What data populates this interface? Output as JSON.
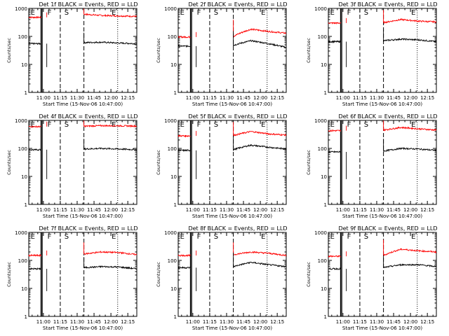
{
  "chart_data": [
    {
      "type": "line",
      "title": "Det 1f BLACK = Events, RED = LLD",
      "xlabel": "Start Time (15-Nov-06 10:47:00)",
      "ylabel": "Counts/sec",
      "yscale": "log",
      "ylim": [
        1,
        1000
      ],
      "xlim": [
        "10:47",
        "12:23"
      ],
      "xticks": [
        "11:00",
        "11:15",
        "11:30",
        "11:45",
        "12:00",
        "12:15"
      ],
      "yticks": [
        "1",
        "10",
        "100",
        "1000"
      ],
      "markers": [
        {
          "label": "E",
          "time": "10:48"
        },
        {
          "label": "F",
          "time": "11:03"
        },
        {
          "label": "S",
          "time": "11:18"
        },
        {
          "label": "E",
          "time": "12:00"
        }
      ],
      "series": [
        {
          "name": "LLD",
          "color": "#ff0000",
          "baseline": [
            480,
            620,
            560,
            540,
            520
          ],
          "values_note": ""
        },
        {
          "name": "Events",
          "color": "#000000",
          "baseline": [
            55,
            60,
            62,
            58,
            55
          ]
        }
      ],
      "gaps": [
        [
          "11:03",
          "11:36"
        ]
      ],
      "vlines_solid": [
        "10:59",
        "11:00"
      ],
      "vlines_dashed": [
        "11:15",
        "11:36"
      ],
      "vlines_dotted": [
        "12:05"
      ],
      "line_segments": [
        [
          "11:36",
          "12:23"
        ]
      ],
      "pre_segments": [
        [
          "10:47",
          "10:59"
        ]
      ]
    },
    {
      "type": "line",
      "title": "Det 2f BLACK = Events, RED = LLD",
      "xlabel": "Start Time (15-Nov-06 10:47:00)",
      "ylabel": "Counts/sec",
      "yscale": "log",
      "ylim": [
        1,
        1000
      ],
      "xlim": [
        "10:47",
        "12:23"
      ],
      "xticks": [
        "11:00",
        "11:15",
        "11:30",
        "11:45",
        "12:00",
        "12:15"
      ],
      "yticks": [
        "1",
        "10",
        "100",
        "1000"
      ],
      "markers": [
        {
          "label": "E",
          "time": "10:48"
        },
        {
          "label": "F",
          "time": "11:03"
        },
        {
          "label": "S",
          "time": "11:18"
        },
        {
          "label": "E",
          "time": "12:00"
        }
      ],
      "series": [
        {
          "name": "LLD",
          "color": "#ff0000",
          "baseline": [
            95,
            100,
            180,
            150,
            130
          ]
        },
        {
          "name": "Events",
          "color": "#000000",
          "baseline": [
            45,
            48,
            70,
            55,
            40
          ]
        }
      ]
    },
    {
      "type": "line",
      "title": "Det 3f BLACK = Events, RED = LLD",
      "xlabel": "Start Time (15-Nov-06 10:47:00)",
      "ylabel": "Counts/sec",
      "yscale": "log",
      "ylim": [
        1,
        1000
      ],
      "xlim": [
        "10:47",
        "12:23"
      ],
      "xticks": [
        "11:00",
        "11:15",
        "11:30",
        "11:45",
        "12:00",
        "12:15"
      ],
      "yticks": [
        "1",
        "10",
        "100",
        "1000"
      ],
      "markers": [
        {
          "label": "E",
          "time": "10:48"
        },
        {
          "label": "F",
          "time": "11:03"
        },
        {
          "label": "S",
          "time": "11:18"
        },
        {
          "label": "E",
          "time": "12:00"
        }
      ],
      "series": [
        {
          "name": "LLD",
          "color": "#ff0000",
          "baseline": [
            300,
            310,
            400,
            350,
            330
          ]
        },
        {
          "name": "Events",
          "color": "#000000",
          "baseline": [
            65,
            70,
            80,
            75,
            65
          ]
        }
      ]
    },
    {
      "type": "line",
      "title": "Det 4f BLACK = Events, RED = LLD",
      "xlabel": "Start Time (15-Nov-06 10:47:00)",
      "ylabel": "Counts/sec",
      "yscale": "log",
      "ylim": [
        1,
        1000
      ],
      "xlim": [
        "10:47",
        "12:23"
      ],
      "xticks": [
        "11:00",
        "11:15",
        "11:30",
        "11:45",
        "12:00",
        "12:15"
      ],
      "yticks": [
        "1",
        "10",
        "100",
        "1000"
      ],
      "markers": [
        {
          "label": "E",
          "time": "10:48"
        },
        {
          "label": "F",
          "time": "11:03"
        },
        {
          "label": "S",
          "time": "11:18"
        },
        {
          "label": "E",
          "time": "12:00"
        }
      ],
      "series": [
        {
          "name": "LLD",
          "color": "#ff0000",
          "baseline": [
            600,
            620,
            650,
            640,
            630
          ]
        },
        {
          "name": "Events",
          "color": "#000000",
          "baseline": [
            90,
            95,
            100,
            95,
            90
          ]
        }
      ]
    },
    {
      "type": "line",
      "title": "Det 5f BLACK = Events, RED = LLD",
      "xlabel": "Start Time (15-Nov-06 10:47:00)",
      "ylabel": "Counts/sec",
      "yscale": "log",
      "ylim": [
        1,
        1000
      ],
      "xlim": [
        "10:47",
        "12:23"
      ],
      "xticks": [
        "11:00",
        "11:15",
        "11:30",
        "11:45",
        "12:00",
        "12:15"
      ],
      "yticks": [
        "1",
        "10",
        "100",
        "1000"
      ],
      "markers": [
        {
          "label": "E",
          "time": "10:48"
        },
        {
          "label": "F",
          "time": "11:03"
        },
        {
          "label": "S",
          "time": "11:18"
        },
        {
          "label": "E",
          "time": "12:00"
        }
      ],
      "series": [
        {
          "name": "LLD",
          "color": "#ff0000",
          "baseline": [
            280,
            290,
            400,
            330,
            300
          ]
        },
        {
          "name": "Events",
          "color": "#000000",
          "baseline": [
            85,
            90,
            130,
            110,
            95
          ]
        }
      ]
    },
    {
      "type": "line",
      "title": "Det 6f BLACK = Events, RED = LLD",
      "xlabel": "Start Time (15-Nov-06 10:47:00)",
      "ylabel": "Counts/sec",
      "yscale": "log",
      "ylim": [
        1,
        1000
      ],
      "xlim": [
        "10:47",
        "12:23"
      ],
      "xticks": [
        "11:00",
        "11:15",
        "11:30",
        "11:45",
        "12:00",
        "12:15"
      ],
      "yticks": [
        "1",
        "10",
        "100",
        "1000"
      ],
      "markers": [
        {
          "label": "E",
          "time": "10:48"
        },
        {
          "label": "F",
          "time": "11:03"
        },
        {
          "label": "S",
          "time": "11:18"
        },
        {
          "label": "E",
          "time": "12:00"
        }
      ],
      "series": [
        {
          "name": "LLD",
          "color": "#ff0000",
          "baseline": [
            430,
            450,
            560,
            500,
            450
          ]
        },
        {
          "name": "Events",
          "color": "#000000",
          "baseline": [
            75,
            80,
            100,
            95,
            85
          ]
        }
      ]
    },
    {
      "type": "line",
      "title": "Det 7f BLACK = Events, RED = LLD",
      "xlabel": "Start Time (15-Nov-06 10:47:00)",
      "ylabel": "Counts/sec",
      "yscale": "log",
      "ylim": [
        1,
        1000
      ],
      "xlim": [
        "10:47",
        "12:23"
      ],
      "xticks": [
        "11:00",
        "11:15",
        "11:30",
        "11:45",
        "12:00",
        "12:15"
      ],
      "yticks": [
        "1",
        "10",
        "100",
        "1000"
      ],
      "markers": [
        {
          "label": "E",
          "time": "10:48"
        },
        {
          "label": "F",
          "time": "11:03"
        },
        {
          "label": "S",
          "time": "11:18"
        },
        {
          "label": "E",
          "time": "12:00"
        }
      ],
      "series": [
        {
          "name": "LLD",
          "color": "#ff0000",
          "baseline": [
            150,
            170,
            200,
            190,
            160
          ]
        },
        {
          "name": "Events",
          "color": "#000000",
          "baseline": [
            50,
            55,
            60,
            58,
            50
          ]
        }
      ]
    },
    {
      "type": "line",
      "title": "Det 8f BLACK = Events, RED = LLD",
      "xlabel": "Start Time (15-Nov-06 10:47:00)",
      "ylabel": "Counts/sec",
      "yscale": "log",
      "ylim": [
        1,
        1000
      ],
      "xlim": [
        "10:47",
        "12:23"
      ],
      "xticks": [
        "11:00",
        "11:15",
        "11:30",
        "11:45",
        "12:00",
        "12:15"
      ],
      "yticks": [
        "1",
        "10",
        "100",
        "1000"
      ],
      "markers": [
        {
          "label": "E",
          "time": "10:48"
        },
        {
          "label": "F",
          "time": "11:03"
        },
        {
          "label": "S",
          "time": "11:18"
        },
        {
          "label": "E",
          "time": "12:00"
        }
      ],
      "series": [
        {
          "name": "LLD",
          "color": "#ff0000",
          "baseline": [
            150,
            160,
            200,
            180,
            150
          ]
        },
        {
          "name": "Events",
          "color": "#000000",
          "baseline": [
            55,
            60,
            85,
            70,
            60
          ]
        }
      ]
    },
    {
      "type": "line",
      "title": "Det 9f BLACK = Events, RED = LLD",
      "xlabel": "Start Time (15-Nov-06 10:47:00)",
      "ylabel": "Counts/sec",
      "yscale": "log",
      "ylim": [
        1,
        1000
      ],
      "xlim": [
        "10:47",
        "12:23"
      ],
      "xticks": [
        "11:00",
        "11:15",
        "11:30",
        "11:45",
        "12:00",
        "12:15"
      ],
      "yticks": [
        "1",
        "10",
        "100",
        "1000"
      ],
      "markers": [
        {
          "label": "E",
          "time": "10:48"
        },
        {
          "label": "F",
          "time": "11:03"
        },
        {
          "label": "S",
          "time": "11:18"
        },
        {
          "label": "E",
          "time": "12:00"
        }
      ],
      "series": [
        {
          "name": "LLD",
          "color": "#ff0000",
          "baseline": [
            140,
            150,
            250,
            220,
            200
          ]
        },
        {
          "name": "Events",
          "color": "#000000",
          "baseline": [
            50,
            55,
            70,
            70,
            60
          ]
        }
      ]
    }
  ]
}
